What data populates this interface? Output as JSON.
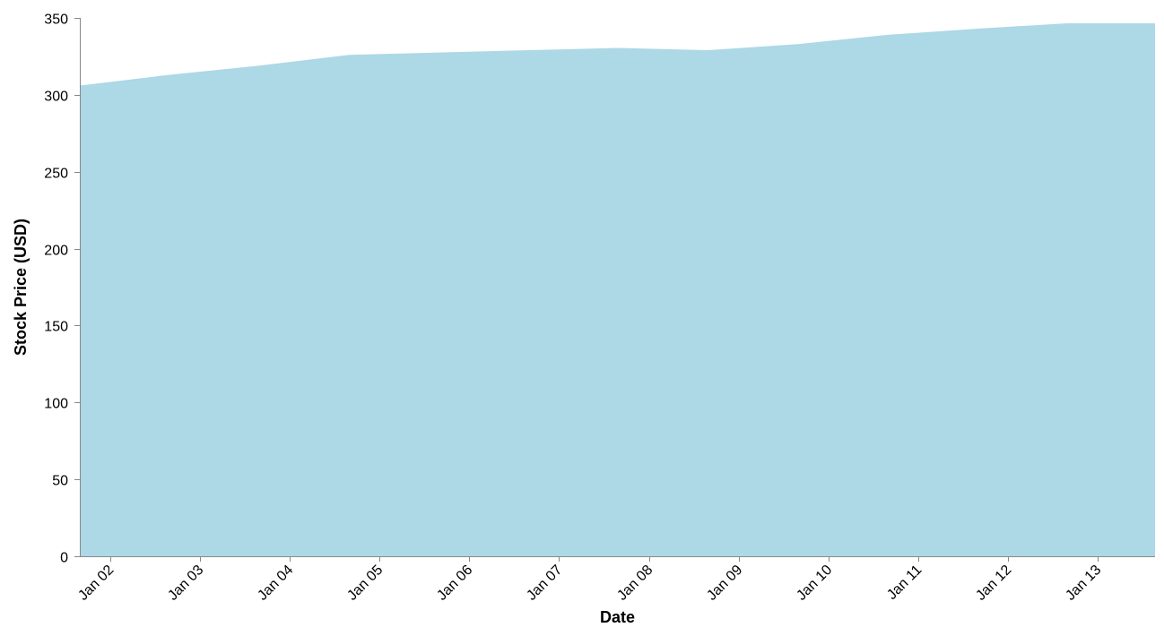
{
  "chart_data": {
    "type": "area",
    "title": "",
    "xlabel": "Date",
    "ylabel": "Stock Price (USD)",
    "ylim": [
      0,
      350
    ],
    "yticks": [
      0,
      50,
      100,
      150,
      200,
      250,
      300,
      350
    ],
    "xlim": [
      0.66,
      12.64
    ],
    "xticks": [
      {
        "pos": 1,
        "label": "Jan 02"
      },
      {
        "pos": 2,
        "label": "Jan 03"
      },
      {
        "pos": 3,
        "label": "Jan 04"
      },
      {
        "pos": 4,
        "label": "Jan 05"
      },
      {
        "pos": 5,
        "label": "Jan 06"
      },
      {
        "pos": 6,
        "label": "Jan 07"
      },
      {
        "pos": 7,
        "label": "Jan 08"
      },
      {
        "pos": 8,
        "label": "Jan 09"
      },
      {
        "pos": 9,
        "label": "Jan 10"
      },
      {
        "pos": 10,
        "label": "Jan 11"
      },
      {
        "pos": 11,
        "label": "Jan 12"
      },
      {
        "pos": 12,
        "label": "Jan 13"
      }
    ],
    "points": [
      {
        "x": 0.66,
        "y": 306
      },
      {
        "x": 1.66,
        "y": 313
      },
      {
        "x": 2.66,
        "y": 319
      },
      {
        "x": 3.66,
        "y": 326
      },
      {
        "x": 4.66,
        "y": 327.5
      },
      {
        "x": 5.66,
        "y": 329
      },
      {
        "x": 6.66,
        "y": 330.5
      },
      {
        "x": 7.66,
        "y": 329
      },
      {
        "x": 8.66,
        "y": 333
      },
      {
        "x": 9.66,
        "y": 339
      },
      {
        "x": 10.66,
        "y": 343
      },
      {
        "x": 11.66,
        "y": 346.5
      },
      {
        "x": 12.64,
        "y": 346.5
      }
    ],
    "series_name": "Stock Price",
    "fill_color": "#add8e6",
    "axis_color": "#888888"
  }
}
